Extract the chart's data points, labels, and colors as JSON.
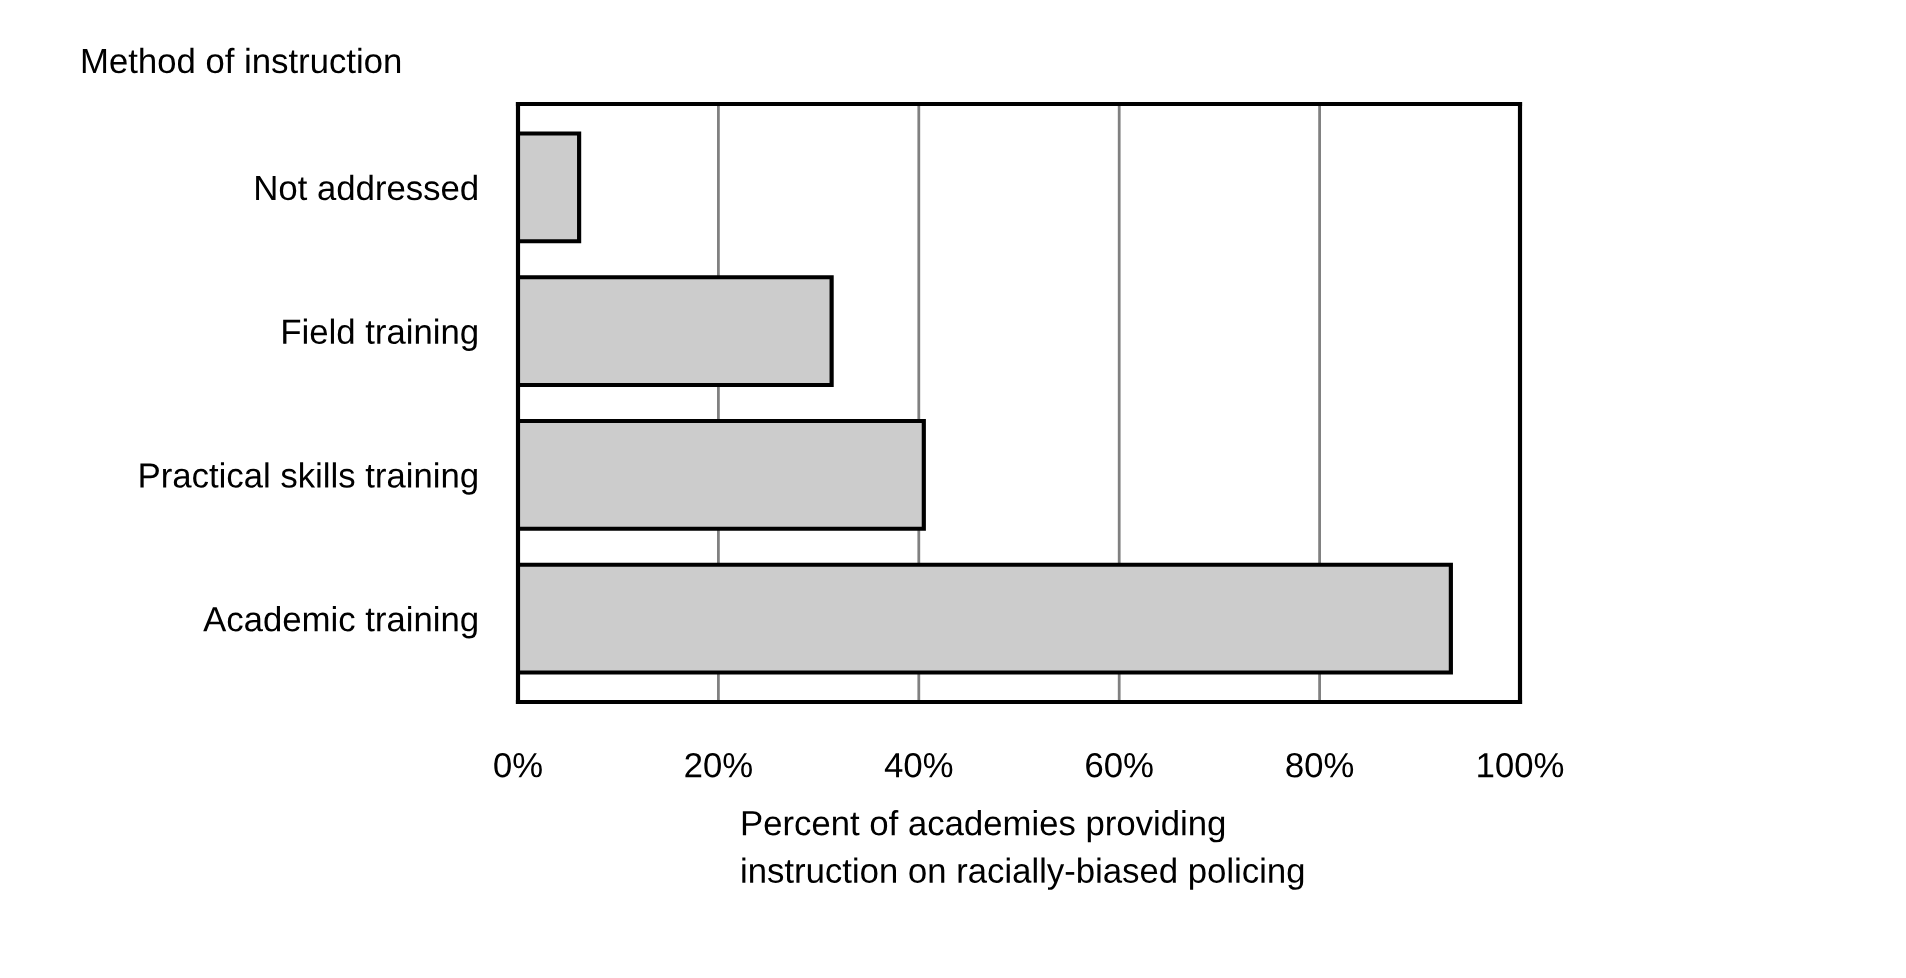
{
  "chart_data": {
    "type": "bar",
    "orientation": "horizontal",
    "ylabel": "Method of instruction",
    "xlabel": "Percent of academies providing\ninstruction on racially-biased policing",
    "categories": [
      "Not addressed",
      "Field training",
      "Practical skills training",
      "Academic training"
    ],
    "values": [
      6.1,
      31.3,
      40.5,
      93.1
    ],
    "color": "#cccccc",
    "xlim": [
      0,
      100
    ],
    "xticks": [
      {
        "value": 0,
        "label": "0%"
      },
      {
        "value": 20,
        "label": "20%"
      },
      {
        "value": 40,
        "label": "40%"
      },
      {
        "value": 60,
        "label": "60%"
      },
      {
        "value": 80,
        "label": "80%"
      },
      {
        "value": 100,
        "label": "100%"
      }
    ],
    "grid": "x",
    "legend": false
  }
}
